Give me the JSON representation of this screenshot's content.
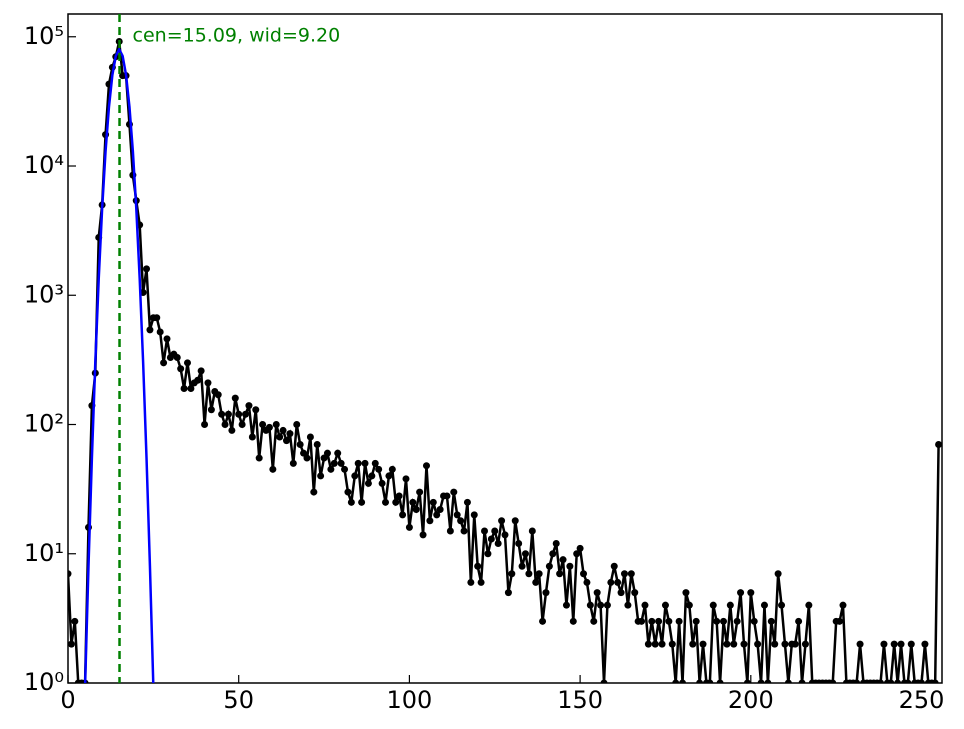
{
  "chart_data": {
    "type": "line",
    "log_y": true,
    "annotation": "cen=15.09, wid=9.20",
    "annotation_color": "#008000",
    "vline": 15.09,
    "vline_color": "#008000",
    "xlim": [
      0,
      256
    ],
    "ylim": [
      1,
      150000
    ],
    "xticks": [
      0,
      50,
      100,
      150,
      200,
      250
    ],
    "yticks": [
      {
        "value": 1,
        "label": "10⁰"
      },
      {
        "value": 10,
        "label": "10¹"
      },
      {
        "value": 100,
        "label": "10²"
      },
      {
        "value": 1000,
        "label": "10³"
      },
      {
        "value": 10000,
        "label": "10⁴"
      },
      {
        "value": 100000,
        "label": "10⁵"
      }
    ],
    "series": [
      {
        "color": "#000000",
        "x": [
          0,
          1,
          2,
          3,
          4,
          5,
          6,
          7,
          8,
          9,
          10,
          11,
          12,
          13,
          14,
          15,
          16,
          17,
          18,
          19,
          20,
          21,
          22,
          23,
          24,
          25,
          26,
          27,
          28,
          29,
          30,
          31,
          32,
          33,
          34,
          35,
          36,
          37,
          38,
          39,
          40,
          41,
          42,
          43,
          44,
          45,
          46,
          47,
          48,
          49,
          50,
          51,
          52,
          53,
          54,
          55,
          56,
          57,
          58,
          59,
          60,
          61,
          62,
          63,
          64,
          65,
          66,
          67,
          68,
          69,
          70,
          71,
          72,
          73,
          74,
          75,
          76,
          77,
          78,
          79,
          80,
          81,
          82,
          83,
          84,
          85,
          86,
          87,
          88,
          89,
          90,
          91,
          92,
          93,
          94,
          95,
          96,
          97,
          98,
          99,
          100,
          101,
          102,
          103,
          104,
          105,
          106,
          107,
          108,
          109,
          110,
          111,
          112,
          113,
          114,
          115,
          116,
          117,
          118,
          119,
          120,
          121,
          122,
          123,
          124,
          125,
          126,
          127,
          128,
          129,
          130,
          131,
          132,
          133,
          134,
          135,
          136,
          137,
          138,
          139,
          140,
          141,
          142,
          143,
          144,
          145,
          146,
          147,
          148,
          149,
          150,
          151,
          152,
          153,
          154,
          155,
          156,
          157,
          158,
          159,
          160,
          161,
          162,
          163,
          164,
          165,
          166,
          167,
          168,
          169,
          170,
          171,
          172,
          173,
          174,
          175,
          176,
          177,
          178,
          179,
          180,
          181,
          182,
          183,
          184,
          185,
          186,
          187,
          188,
          189,
          190,
          191,
          192,
          193,
          194,
          195,
          196,
          197,
          198,
          199,
          200,
          201,
          202,
          203,
          204,
          205,
          206,
          207,
          208,
          209,
          210,
          211,
          212,
          213,
          214,
          215,
          216,
          217,
          218,
          219,
          220,
          221,
          222,
          223,
          224,
          225,
          226,
          227,
          228,
          229,
          230,
          231,
          232,
          233,
          234,
          235,
          236,
          237,
          238,
          239,
          240,
          241,
          242,
          243,
          244,
          245,
          246,
          247,
          248,
          249,
          250,
          251,
          252,
          253,
          254,
          255
        ],
        "values": [
          7,
          2,
          3,
          1,
          1,
          1,
          16,
          140,
          250,
          2800,
          5000,
          17500,
          43000,
          58000,
          70000,
          92000,
          50000,
          50000,
          21000,
          8500,
          5400,
          3500,
          1050,
          1600,
          540,
          670,
          670,
          520,
          300,
          460,
          330,
          350,
          330,
          270,
          190,
          300,
          190,
          210,
          220,
          260,
          100,
          210,
          130,
          180,
          170,
          120,
          100,
          120,
          90,
          160,
          120,
          100,
          120,
          140,
          80,
          130,
          55,
          100,
          90,
          95,
          45,
          100,
          80,
          90,
          75,
          85,
          50,
          100,
          70,
          60,
          55,
          80,
          30,
          70,
          40,
          55,
          60,
          45,
          50,
          60,
          50,
          45,
          30,
          25,
          40,
          50,
          25,
          50,
          35,
          40,
          50,
          45,
          35,
          25,
          40,
          45,
          25,
          28,
          20,
          38,
          16,
          25,
          22,
          30,
          14,
          48,
          18,
          25,
          20,
          22,
          28,
          28,
          15,
          30,
          20,
          18,
          15,
          25,
          6,
          20,
          8,
          6,
          15,
          10,
          13,
          15,
          12,
          18,
          14,
          5,
          7,
          18,
          12,
          8,
          10,
          7,
          15,
          6,
          7,
          3,
          5,
          8,
          10,
          12,
          7,
          9,
          4,
          8,
          3,
          10,
          11,
          7,
          6,
          4,
          3,
          5,
          4,
          1,
          4,
          6,
          8,
          6,
          5,
          7,
          4,
          7,
          5,
          3,
          3,
          4,
          2,
          3,
          2,
          3,
          2,
          4,
          3,
          2,
          1,
          3,
          1,
          5,
          4,
          2,
          3,
          1,
          2,
          1,
          1,
          4,
          3,
          1,
          3,
          2,
          4,
          2,
          3,
          5,
          2,
          1,
          5,
          3,
          2,
          1,
          4,
          1,
          3,
          2,
          7,
          4,
          2,
          1,
          2,
          2,
          3,
          1,
          2,
          4,
          1,
          1,
          1,
          1,
          1,
          1,
          1,
          3,
          3,
          4,
          1,
          1,
          1,
          1,
          2,
          1,
          1,
          1,
          1,
          1,
          1,
          2,
          1,
          1,
          2,
          1,
          2,
          1,
          1,
          2,
          1,
          1,
          1,
          2,
          1,
          1,
          1,
          70
        ]
      },
      {
        "color": "#0000ff",
        "x": [
          5,
          6,
          7,
          8,
          9,
          10,
          11,
          12,
          13,
          14,
          15,
          16,
          17,
          18,
          19,
          20,
          21,
          22,
          23,
          24,
          25
        ],
        "values": [
          0.94,
          8,
          55,
          305,
          1340,
          4700,
          13000,
          28700,
          50700,
          71000,
          80000,
          71000,
          50700,
          28700,
          13000,
          4700,
          1340,
          305,
          55,
          8,
          0.94
        ]
      }
    ]
  }
}
